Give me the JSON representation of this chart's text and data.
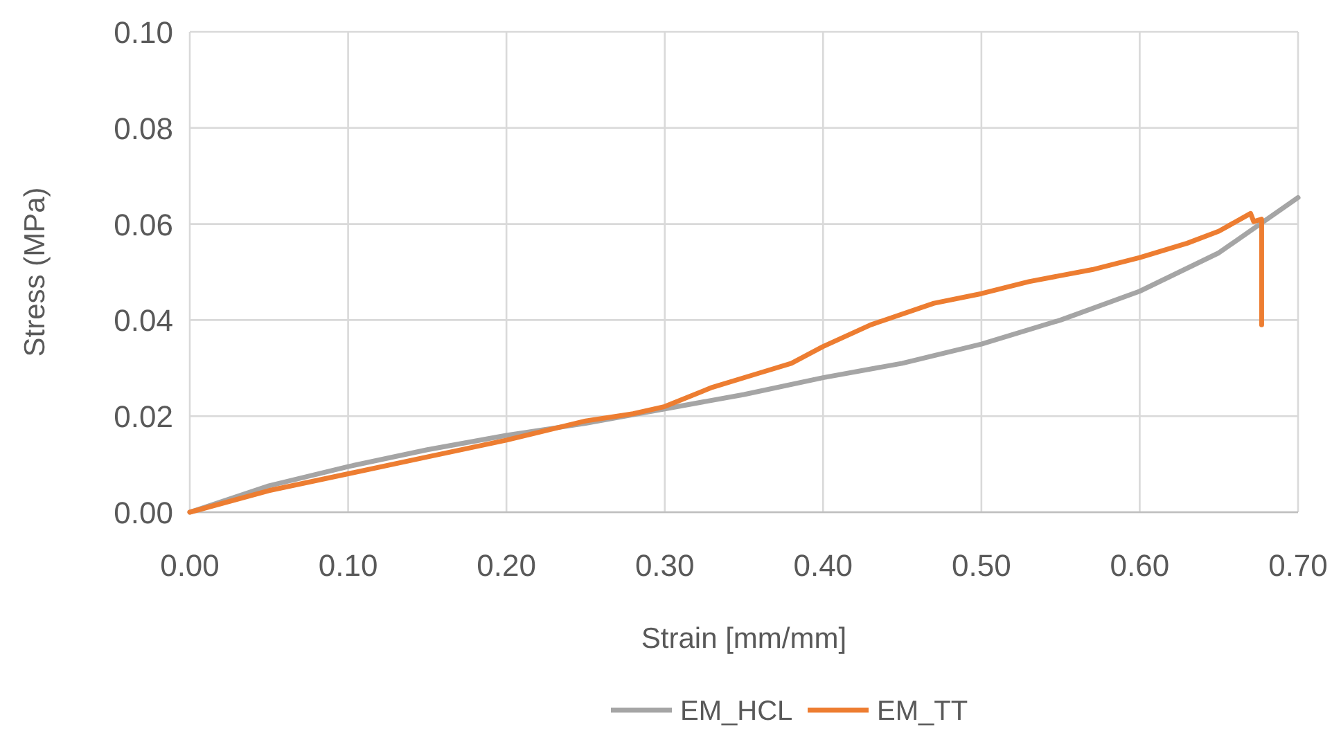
{
  "chart_data": {
    "type": "line",
    "xlabel": "Strain [mm/mm]",
    "ylabel": "Stress (MPa)",
    "xlim": [
      0,
      0.7
    ],
    "ylim": [
      0,
      0.1
    ],
    "xticks": [
      {
        "value": 0,
        "label": "0.00"
      },
      {
        "value": 0.1,
        "label": "0.10"
      },
      {
        "value": 0.2,
        "label": "0.20"
      },
      {
        "value": 0.3,
        "label": "0.30"
      },
      {
        "value": 0.4,
        "label": "0.40"
      },
      {
        "value": 0.5,
        "label": "0.50"
      },
      {
        "value": 0.6,
        "label": "0.60"
      },
      {
        "value": 0.7,
        "label": "0.70"
      }
    ],
    "yticks": [
      {
        "value": 0,
        "label": "0.00"
      },
      {
        "value": 0.02,
        "label": "0.02"
      },
      {
        "value": 0.04,
        "label": "0.04"
      },
      {
        "value": 0.06,
        "label": "0.06"
      },
      {
        "value": 0.08,
        "label": "0.08"
      },
      {
        "value": 0.1,
        "label": "0.10"
      }
    ],
    "grid": true,
    "legend": "bottom",
    "marker": "none",
    "line_style": "solid",
    "series": [
      {
        "name": "EM_HCL",
        "color": "#a5a5a5",
        "x": [
          0,
          0.05,
          0.1,
          0.15,
          0.2,
          0.25,
          0.3,
          0.35,
          0.4,
          0.45,
          0.5,
          0.55,
          0.6,
          0.65,
          0.7
        ],
        "values": [
          0,
          0.0055,
          0.0095,
          0.013,
          0.016,
          0.0185,
          0.0215,
          0.0245,
          0.028,
          0.031,
          0.035,
          0.04,
          0.046,
          0.054,
          0.0655
        ]
      },
      {
        "name": "EM_TT",
        "color": "#ed7d31",
        "x": [
          0,
          0.05,
          0.1,
          0.15,
          0.2,
          0.25,
          0.28,
          0.3,
          0.33,
          0.36,
          0.38,
          0.4,
          0.43,
          0.47,
          0.5,
          0.53,
          0.57,
          0.6,
          0.63,
          0.65,
          0.67,
          0.672,
          0.677,
          0.677
        ],
        "values": [
          0,
          0.0045,
          0.008,
          0.0115,
          0.015,
          0.019,
          0.0205,
          0.022,
          0.026,
          0.029,
          0.031,
          0.0345,
          0.039,
          0.0435,
          0.0455,
          0.048,
          0.0505,
          0.053,
          0.056,
          0.0585,
          0.0622,
          0.0605,
          0.061,
          0.039
        ]
      }
    ]
  }
}
